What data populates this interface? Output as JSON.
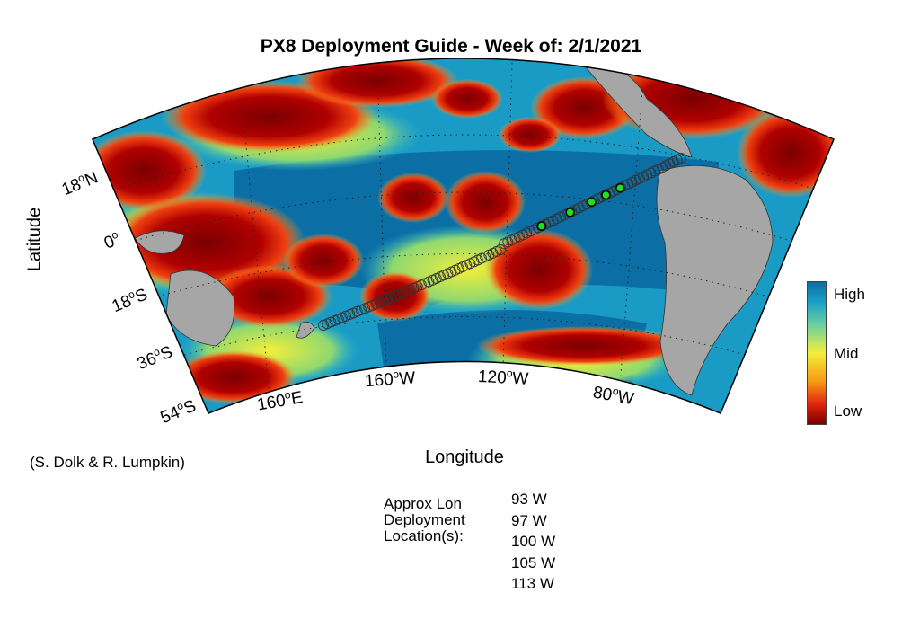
{
  "title": "PX8 Deployment Guide - Week of: 2/1/2021",
  "axes": {
    "ylabel": "Latitude",
    "xlabel": "Longitude",
    "lat_ticks": [
      {
        "deg": "18",
        "hemi": "N"
      },
      {
        "deg": "0",
        "hemi": ""
      },
      {
        "deg": "18",
        "hemi": "S"
      },
      {
        "deg": "36",
        "hemi": "S"
      },
      {
        "deg": "54",
        "hemi": "S"
      }
    ],
    "lon_ticks": [
      {
        "deg": "160",
        "hemi": "E"
      },
      {
        "deg": "160",
        "hemi": "W"
      },
      {
        "deg": "120",
        "hemi": "W"
      },
      {
        "deg": "80",
        "hemi": "W"
      }
    ]
  },
  "colorbar": {
    "labels": [
      "High",
      "Mid",
      "Low"
    ],
    "colors": [
      "#0b6fa6",
      "#19a0c8",
      "#6bd0a0",
      "#f3ef3a",
      "#f59a12",
      "#e2240e",
      "#7a0000"
    ]
  },
  "credit": "(S. Dolk & R. Lumpkin)",
  "deployment": {
    "label_lines": [
      "Approx Lon",
      "Deployment",
      "Location(s):"
    ],
    "locations": [
      "93 W",
      "97 W",
      "100 W",
      "105 W",
      "113 W"
    ]
  },
  "colors": {
    "land": "#a6a6a6",
    "ocean_high": "#0b6fa6",
    "ocean_low": "#7a0000",
    "deploy_marker": "#22dd22"
  },
  "route": {
    "lon_start": 174,
    "lat_start": -37,
    "lon_end": -79,
    "lat_end": 9
  }
}
